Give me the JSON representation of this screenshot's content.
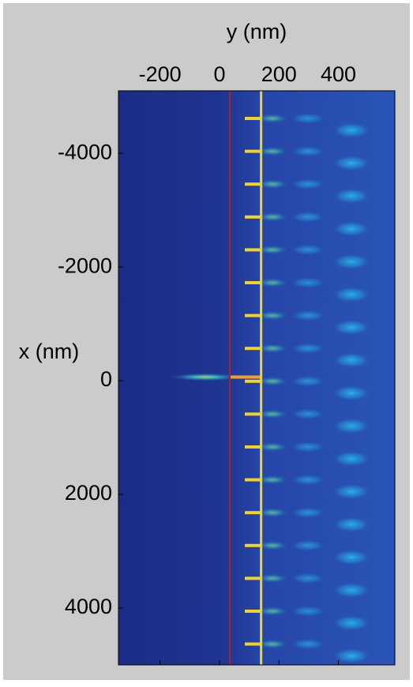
{
  "chart_data": {
    "type": "heatmap",
    "xlabel": "y (nm)",
    "ylabel": "x (nm)",
    "xlim": [
      -340,
      590
    ],
    "xticks": [
      -200,
      0,
      200,
      400
    ],
    "ylim": [
      -5100,
      5000
    ],
    "yticks": [
      -4000,
      -2000,
      0,
      2000,
      4000
    ],
    "vertical_lines": [
      {
        "value": 35,
        "color": "#b0202a"
      },
      {
        "value": 140,
        "color": "#f2d22a"
      }
    ]
  }
}
